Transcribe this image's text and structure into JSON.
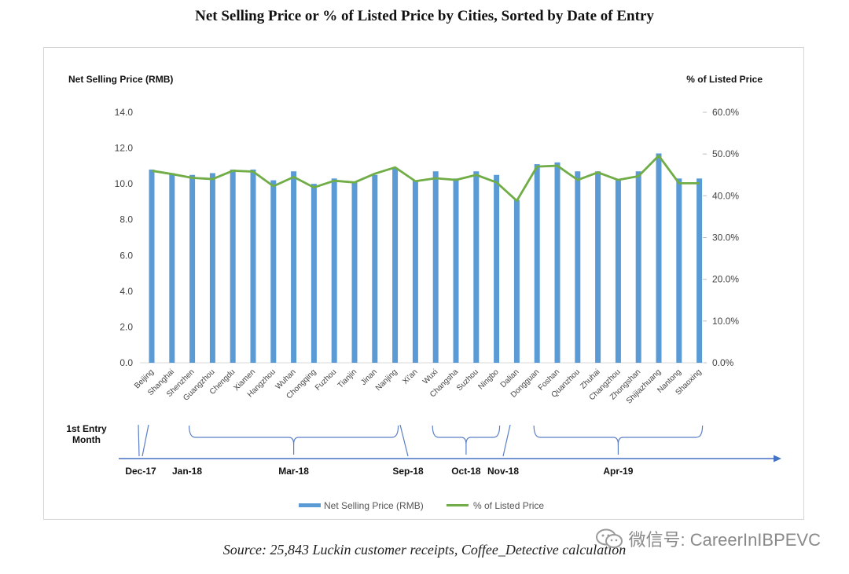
{
  "chart_data": {
    "type": "bar",
    "title": "Net Selling Price or % of Listed Price by Cities, Sorted by Date of Entry",
    "ylabel": "Net Selling Price (RMB)",
    "y2label": "% of Listed Price",
    "ylim": [
      0,
      14
    ],
    "y2lim": [
      0,
      60
    ],
    "yticks": [
      "0.0",
      "2.0",
      "4.0",
      "6.0",
      "8.0",
      "10.0",
      "12.0",
      "14.0"
    ],
    "y2ticks": [
      "0.0%",
      "10.0%",
      "20.0%",
      "30.0%",
      "40.0%",
      "50.0%",
      "60.0%"
    ],
    "categories": [
      "Beijing",
      "Shanghai",
      "Shenzhen",
      "Guangzhou",
      "Chengdu",
      "Xiamen",
      "Hangzhou",
      "Wuhan",
      "Chongqing",
      "Fuzhou",
      "Tianjin",
      "Jinan",
      "Nanjing",
      "Xi'an",
      "Wuxi",
      "Changsha",
      "Suzhou",
      "Ningbo",
      "Dalian",
      "Dongguan",
      "Foshan",
      "Quanzhou",
      "Zhuhai",
      "Changzhou",
      "Zhongshan",
      "Shijiazhuang",
      "Nantong",
      "Shaoxing"
    ],
    "series": [
      {
        "name": "Net Selling Price (RMB)",
        "type": "bar",
        "color": "#5b9bd5",
        "values": [
          10.8,
          10.6,
          10.5,
          10.6,
          10.8,
          10.8,
          10.2,
          10.7,
          10.0,
          10.3,
          10.1,
          10.5,
          10.9,
          10.2,
          10.7,
          10.3,
          10.7,
          10.5,
          9.1,
          11.1,
          11.2,
          10.7,
          10.7,
          10.2,
          10.7,
          11.7,
          10.3,
          10.3
        ]
      },
      {
        "name": "% of Listed Price",
        "type": "line",
        "color": "#70ad47",
        "axis": "right",
        "values": [
          46.0,
          45.2,
          44.3,
          44.0,
          46.0,
          45.8,
          42.3,
          44.5,
          42.0,
          43.6,
          43.2,
          45.3,
          46.8,
          43.5,
          44.2,
          43.8,
          45.0,
          43.2,
          38.8,
          47.0,
          47.2,
          43.8,
          45.6,
          43.8,
          44.7,
          49.6,
          43.0,
          43.0
        ]
      }
    ],
    "legend_position": "bottom",
    "grid": false
  },
  "timeline": {
    "label_line1": "1st Entry",
    "label_line2": "Month",
    "groups": [
      {
        "label": "Dec-17",
        "from": 0,
        "to": 0
      },
      {
        "label": "Jan-18",
        "from": 1,
        "to": 1
      },
      {
        "label": "Mar-18",
        "from": 2,
        "to": 12
      },
      {
        "label": "Sep-18",
        "from": 13,
        "to": 13
      },
      {
        "label": "Oct-18",
        "from": 14,
        "to": 17
      },
      {
        "label": "Nov-18",
        "from": 18,
        "to": 18
      },
      {
        "label": "Apr-19",
        "from": 19,
        "to": 27
      }
    ]
  },
  "source": "Source: 25,843 Luckin customer receipts, Coffee_Detective calculation",
  "watermark": "微信号: CareerInIBPEVC",
  "colors": {
    "bar": "#5b9bd5",
    "line": "#70ad47",
    "timeline": "#4472c4",
    "bracket": "#5b7fc7"
  }
}
